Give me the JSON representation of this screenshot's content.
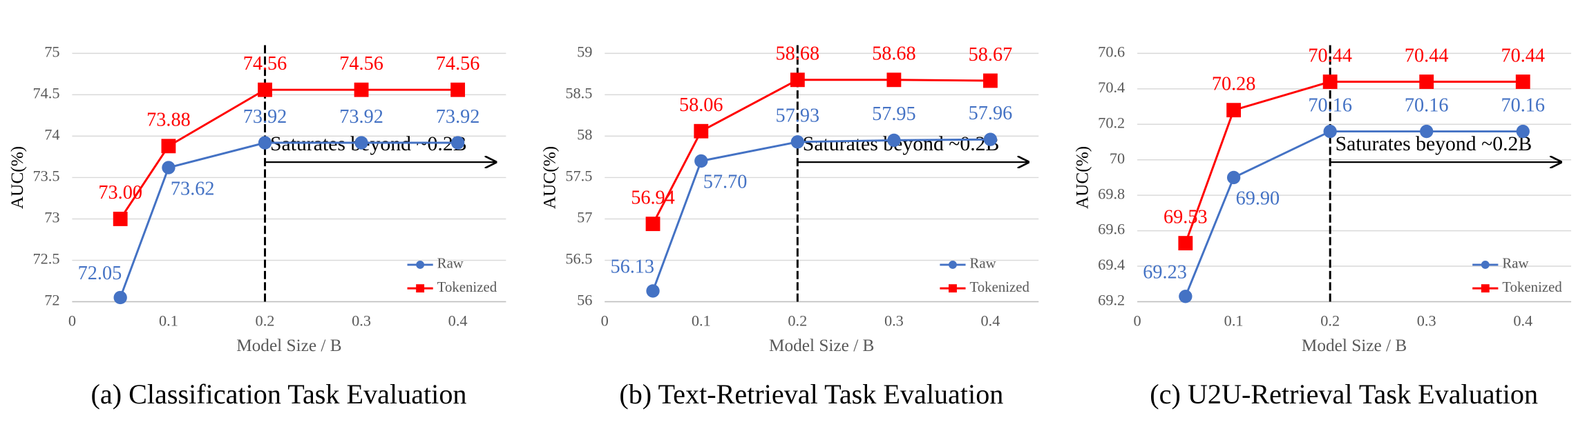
{
  "chart_data": [
    {
      "type": "line",
      "title": "(a) Classification Task Evaluation",
      "x_label": "Model Size / B",
      "y_label": "AUC(%)",
      "x": [
        0.05,
        0.1,
        0.2,
        0.3,
        0.4
      ],
      "xlim": [
        0,
        0.45
      ],
      "xticks": [
        0,
        0.1,
        0.2,
        0.3,
        0.4
      ],
      "ylim": [
        72,
        75
      ],
      "yticks": [
        72,
        72.5,
        73,
        73.5,
        74,
        74.5,
        75
      ],
      "grid": true,
      "legend": "lower right",
      "vline": 0.2,
      "annotation": "Saturates beyond ~0.2B",
      "series": [
        {
          "name": "Raw",
          "color": "#4472c4",
          "marker": "circle",
          "values": [
            72.05,
            73.62,
            73.92,
            73.92,
            73.92
          ],
          "value_labels": [
            "72.05",
            "73.62",
            "73.92",
            "73.92",
            "73.92"
          ]
        },
        {
          "name": "Tokenized",
          "color": "#ff0000",
          "marker": "square",
          "values": [
            73.0,
            73.88,
            74.56,
            74.56,
            74.56
          ],
          "value_labels": [
            "73.00",
            "73.88",
            "74.56",
            "74.56",
            "74.56"
          ]
        }
      ]
    },
    {
      "type": "line",
      "title": "(b) Text-Retrieval Task Evaluation",
      "x_label": "Model Size / B",
      "y_label": "AUC(%)",
      "x": [
        0.05,
        0.1,
        0.2,
        0.3,
        0.4
      ],
      "xlim": [
        0,
        0.45
      ],
      "xticks": [
        0,
        0.1,
        0.2,
        0.3,
        0.4
      ],
      "ylim": [
        56,
        59
      ],
      "yticks": [
        56,
        56.5,
        57,
        57.5,
        58,
        58.5,
        59
      ],
      "grid": true,
      "legend": "lower right",
      "vline": 0.2,
      "annotation": "Saturates beyond ~0.2B",
      "series": [
        {
          "name": "Raw",
          "color": "#4472c4",
          "marker": "circle",
          "values": [
            56.13,
            57.7,
            57.93,
            57.95,
            57.96
          ],
          "value_labels": [
            "56.13",
            "57.70",
            "57.93",
            "57.95",
            "57.96"
          ]
        },
        {
          "name": "Tokenized",
          "color": "#ff0000",
          "marker": "square",
          "values": [
            56.94,
            58.06,
            58.68,
            58.68,
            58.67
          ],
          "value_labels": [
            "56.94",
            "58.06",
            "58.68",
            "58.68",
            "58.67"
          ]
        }
      ]
    },
    {
      "type": "line",
      "title": "(c) U2U-Retrieval Task Evaluation",
      "x_label": "Model Size / B",
      "y_label": "AUC(%)",
      "x": [
        0.05,
        0.1,
        0.2,
        0.3,
        0.4
      ],
      "xlim": [
        0,
        0.45
      ],
      "xticks": [
        0,
        0.1,
        0.2,
        0.3,
        0.4
      ],
      "ylim": [
        69.2,
        70.6
      ],
      "yticks": [
        69.2,
        69.4,
        69.6,
        69.8,
        70,
        70.2,
        70.4,
        70.6
      ],
      "grid": true,
      "legend": "lower right",
      "vline": 0.2,
      "annotation": "Saturates beyond ~0.2B",
      "series": [
        {
          "name": "Raw",
          "color": "#4472c4",
          "marker": "circle",
          "values": [
            69.23,
            69.9,
            70.16,
            70.16,
            70.16
          ],
          "value_labels": [
            "69.23",
            "69.90",
            "70.16",
            "70.16",
            "70.16"
          ]
        },
        {
          "name": "Tokenized",
          "color": "#ff0000",
          "marker": "square",
          "values": [
            69.53,
            70.28,
            70.44,
            70.44,
            70.44
          ],
          "value_labels": [
            "69.53",
            "70.28",
            "70.44",
            "70.44",
            "70.44"
          ]
        }
      ]
    }
  ]
}
